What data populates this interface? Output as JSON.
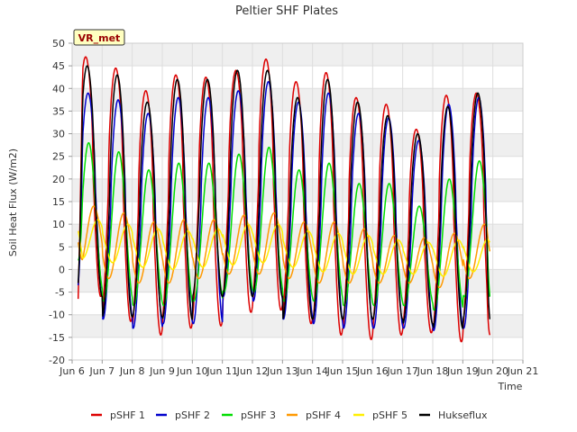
{
  "chart_data": {
    "type": "line",
    "title": "Peltier SHF Plates",
    "xlabel": "Time",
    "ylabel": "Soil Heat Flux (W/m2)",
    "ylim": [
      -20,
      50
    ],
    "xlim": [
      6,
      21
    ],
    "x_ticks": [
      6,
      7,
      8,
      9,
      10,
      11,
      12,
      13,
      14,
      15,
      16,
      17,
      18,
      19,
      20,
      21
    ],
    "x_tick_labels": [
      "Jun 6",
      "Jun 7",
      "Jun 8",
      "Jun 9",
      "Jun 10",
      "Jun 11",
      "Jun 12",
      "Jun 13",
      "Jun 14",
      "Jun 15",
      "Jun 16",
      "Jun 17",
      "Jun 18",
      "Jun 19",
      "Jun 20",
      "Jun 21"
    ],
    "y_ticks": [
      -20,
      -15,
      -10,
      -5,
      0,
      5,
      10,
      15,
      20,
      25,
      30,
      35,
      40,
      45,
      50
    ],
    "annotation": "VR_met",
    "grid": true,
    "legend_position": "bottom",
    "day_centers": [
      6.75,
      7.75,
      8.75,
      9.75,
      10.75,
      11.75,
      12.75,
      13.75,
      14.75,
      15.75,
      16.75,
      17.75,
      18.75,
      19.75
    ],
    "series": [
      {
        "name": "pSHF 1",
        "color": "#dd0000",
        "phase": 0.45,
        "sharp": 3.0,
        "peaks": [
          47,
          44.5,
          39.5,
          43,
          42.5,
          44,
          46.5,
          41.5,
          43.5,
          38,
          36.5,
          31,
          38.5,
          39
        ],
        "troughs": [
          -6,
          -11.5,
          -14.5,
          -13,
          -12.5,
          -9.5,
          -9,
          -12,
          -14.5,
          -15.5,
          -14.5,
          -14,
          -16,
          -14.5
        ],
        "start": -6.5,
        "end": -14.5
      },
      {
        "name": "pSHF 2",
        "color": "#0000cc",
        "phase": 0.53,
        "sharp": 2.4,
        "peaks": [
          39,
          37.5,
          34.5,
          38,
          38,
          39.5,
          41.5,
          37,
          39,
          34.5,
          33.5,
          28.5,
          36.5,
          38
        ],
        "troughs": [
          -5,
          -11,
          -13,
          -12,
          -12,
          -6,
          -7,
          -11,
          -12,
          -13,
          -13,
          -13,
          -13.5,
          -13
        ],
        "start": -3.5,
        "end": -6
      },
      {
        "name": "pSHF 3",
        "color": "#00dd00",
        "phase": 0.55,
        "sharp": 1.6,
        "peaks": [
          28,
          26,
          22,
          23.5,
          23.5,
          25.5,
          27,
          22,
          23.5,
          19,
          19,
          14,
          20,
          24
        ],
        "troughs": [
          -5,
          -7,
          -8,
          -8,
          -7,
          -5,
          -5,
          -7,
          -7,
          -8,
          -8,
          -8,
          -9,
          -6
        ],
        "start": 2,
        "end": -6
      },
      {
        "name": "pSHF 4",
        "color": "#ff9900",
        "phase": 0.72,
        "sharp": 1.0,
        "peaks": [
          14,
          12.5,
          10.5,
          11,
          11,
          12,
          12.5,
          10.5,
          10.5,
          9,
          7.5,
          7,
          8,
          10
        ],
        "troughs": [
          0,
          -2,
          -3,
          -3,
          -2,
          -1,
          -1,
          -2,
          -3,
          -3,
          -3,
          -3,
          -4,
          -2
        ],
        "start": 6,
        "end": 4
      },
      {
        "name": "pSHF 5",
        "color": "#ffee00",
        "phase": 0.85,
        "sharp": 1.0,
        "peaks": [
          11,
          10,
          9,
          8.5,
          9,
          10,
          10,
          8.5,
          8,
          7.5,
          6.5,
          6,
          6.5,
          7
        ],
        "troughs": [
          2.5,
          1.5,
          0.5,
          0,
          0.5,
          1,
          1.5,
          0.5,
          -0.5,
          -1,
          -1,
          -1,
          -1.5,
          -0.5
        ],
        "start": 8.5,
        "end": 6
      },
      {
        "name": "Hukseflux",
        "color": "#000000",
        "phase": 0.5,
        "sharp": 2.6,
        "peaks": [
          45,
          43,
          37,
          42,
          42,
          44,
          44,
          38,
          42,
          37,
          34,
          30,
          36,
          39
        ],
        "troughs": [
          -6,
          -10.5,
          -10.5,
          -11,
          -6,
          -6,
          -6,
          -11,
          -11,
          -11,
          -11,
          -12,
          -13,
          -11
        ],
        "start": -3,
        "end": -11
      }
    ]
  }
}
